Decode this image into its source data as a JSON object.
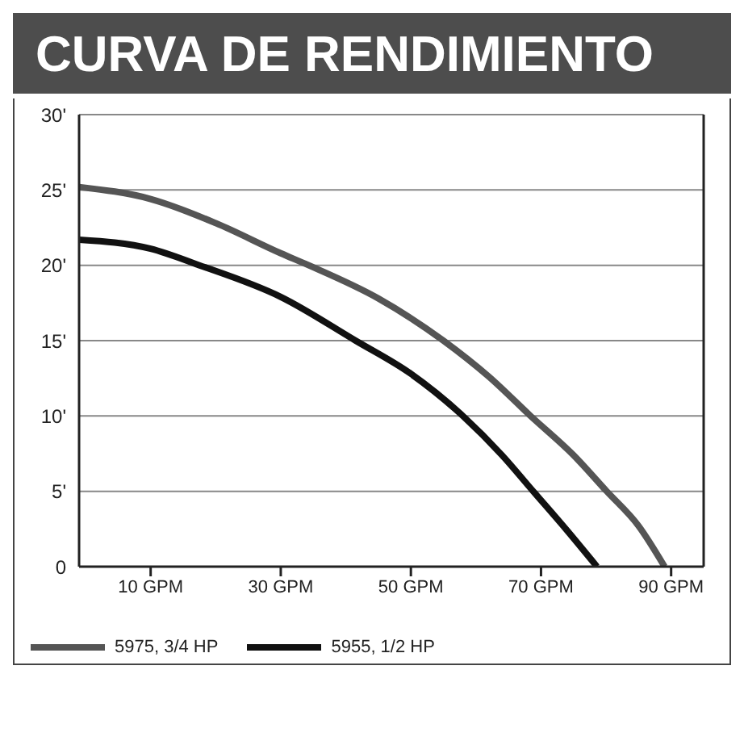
{
  "chart_data": {
    "type": "line",
    "title": "CURVA DE RENDIMIENTO",
    "series": [
      {
        "name": "5975, 3/4 HP",
        "color": "#555555",
        "x": [
          -1,
          10,
          20,
          30,
          34.3,
          45,
          55,
          62,
          68.4,
          75,
          80.1,
          85,
          89
        ],
        "values": [
          25.2,
          24.4,
          22.8,
          20.8,
          20,
          17.8,
          15,
          12.6,
          10,
          7.4,
          5,
          2.7,
          0
        ]
      },
      {
        "name": "5955, 1/2 HP",
        "color": "#111111",
        "x": [
          -1,
          10,
          17.5,
          30,
          41.5,
          50,
          58,
          64,
          68.8,
          74,
          78.6
        ],
        "values": [
          21.7,
          21.1,
          20,
          17.9,
          15,
          12.8,
          10,
          7.4,
          5,
          2.4,
          0
        ]
      }
    ],
    "xlim": [
      -1,
      95
    ],
    "xticks": [
      {
        "value": 10,
        "label": "10 GPM"
      },
      {
        "value": 30,
        "label": "30 GPM"
      },
      {
        "value": 50,
        "label": "50 GPM"
      },
      {
        "value": 70,
        "label": "70 GPM"
      },
      {
        "value": 90,
        "label": "90 GPM"
      }
    ],
    "ylim": [
      0,
      30
    ],
    "yticks": [
      0,
      {
        "value": 5,
        "label": "5'"
      },
      {
        "value": 10,
        "label": "10'"
      },
      {
        "value": 15,
        "label": "15'"
      },
      {
        "value": 20,
        "label": "20'"
      },
      {
        "value": 25,
        "label": "25'"
      },
      {
        "value": 30,
        "label": "30'"
      }
    ],
    "grid": "y",
    "legend": "bottom left",
    "marker": "none",
    "line_style": "solid"
  }
}
